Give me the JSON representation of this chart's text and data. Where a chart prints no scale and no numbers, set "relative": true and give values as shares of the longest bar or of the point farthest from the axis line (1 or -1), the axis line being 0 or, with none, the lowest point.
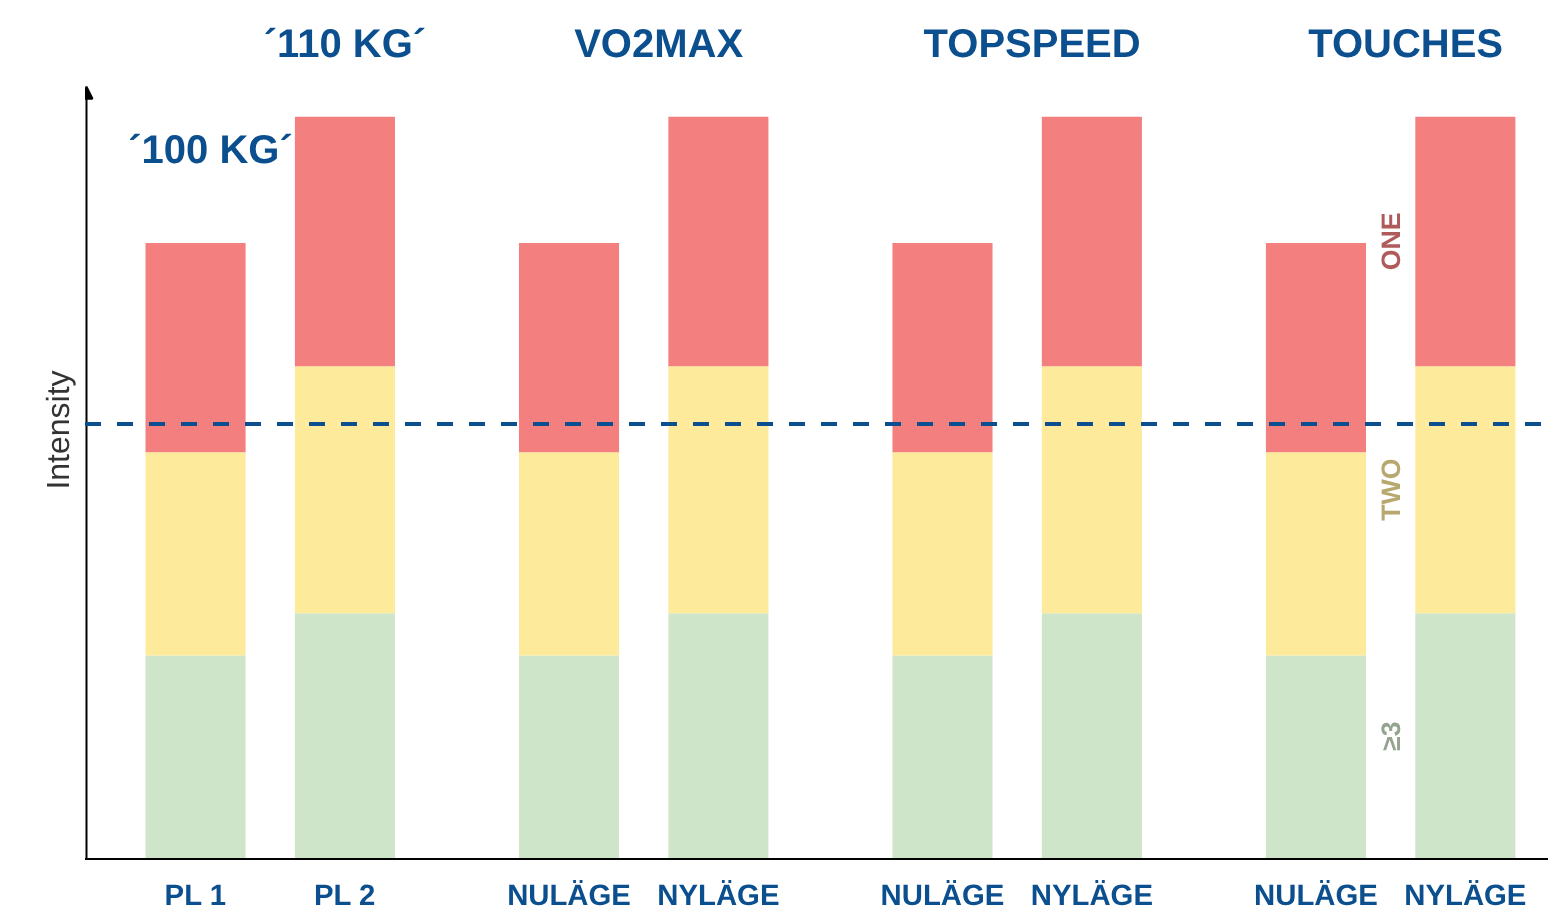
{
  "chart_data": {
    "type": "bar",
    "stacked": true,
    "relative": true,
    "ylabel": "Intensity",
    "legend": false,
    "grid": false,
    "categories": [
      "PL 1",
      "PL 2",
      "NULÄGE",
      "NYLÄGE",
      "NULÄGE",
      "NYLÄGE",
      "NULÄGE",
      "NYLÄGE"
    ],
    "series": [
      {
        "name": "≥3",
        "color": "#cfe5c9",
        "values": [
          0.274,
          0.331,
          0.274,
          0.331,
          0.274,
          0.331,
          0.274,
          0.331
        ]
      },
      {
        "name": "TWO",
        "color": "#fdea9b",
        "values": [
          0.274,
          0.333,
          0.274,
          0.333,
          0.274,
          0.333,
          0.274,
          0.333
        ]
      },
      {
        "name": "ONE",
        "color": "#f47f7f",
        "values": [
          0.282,
          0.336,
          0.282,
          0.336,
          0.282,
          0.336,
          0.282,
          0.336
        ]
      }
    ],
    "ref_lines": [
      {
        "axis": "y",
        "value": 0.586,
        "color": "#0b4f8e",
        "line_style": "dashed"
      }
    ],
    "annotations": [
      "´100 KG´",
      "´110 KG´",
      "VO2MAX",
      "TOPSPEED",
      "TOUCHES"
    ]
  }
}
